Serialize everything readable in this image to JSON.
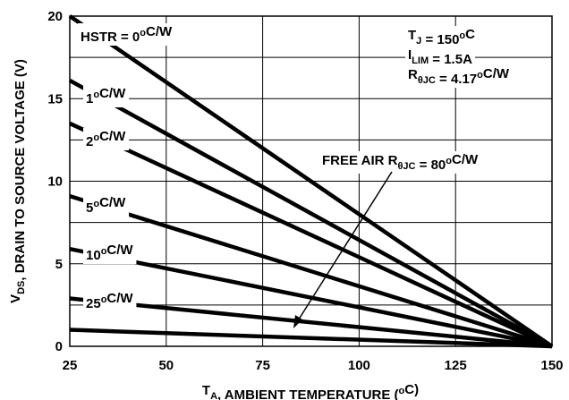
{
  "chart_data": {
    "type": "line",
    "x": [
      25,
      150
    ],
    "series": [
      {
        "name": [
          {
            "t": "HSTR = 0"
          },
          {
            "sup": "o"
          },
          {
            "t": "C/W"
          }
        ],
        "color": "#000000",
        "values": [
          20,
          0
        ]
      },
      {
        "name": [
          {
            "t": "1"
          },
          {
            "sup": "o"
          },
          {
            "t": "C/W"
          }
        ],
        "color": "#000000",
        "values": [
          16.1,
          0
        ]
      },
      {
        "name": [
          {
            "t": "2"
          },
          {
            "sup": "o"
          },
          {
            "t": "C/W"
          }
        ],
        "color": "#000000",
        "values": [
          13.5,
          0
        ]
      },
      {
        "name": [
          {
            "t": "5"
          },
          {
            "sup": "o"
          },
          {
            "t": "C/W"
          }
        ],
        "color": "#000000",
        "values": [
          9.1,
          0
        ]
      },
      {
        "name": [
          {
            "t": "10"
          },
          {
            "sup": "o"
          },
          {
            "t": "C/W"
          }
        ],
        "color": "#000000",
        "values": [
          5.9,
          0
        ]
      },
      {
        "name": [
          {
            "t": "25"
          },
          {
            "sup": "o"
          },
          {
            "t": "C/W"
          }
        ],
        "color": "#000000",
        "values": [
          2.9,
          0
        ]
      },
      {
        "name": [
          {
            "t": "FREE AIR R"
          },
          {
            "sub": "θJC"
          },
          {
            "t": " = 80"
          },
          {
            "sup": "o"
          },
          {
            "t": "C/W"
          }
        ],
        "color": "#000000",
        "values": [
          1.0,
          0
        ]
      }
    ],
    "conditions": [
      [
        {
          "t": "T"
        },
        {
          "sub": "J"
        },
        {
          "t": " = 150"
        },
        {
          "sup": "o"
        },
        {
          "t": "C"
        }
      ],
      [
        {
          "t": "I"
        },
        {
          "sub": "LIM"
        },
        {
          "t": " = 1.5A"
        }
      ],
      [
        {
          "t": "R"
        },
        {
          "sub": "θJC"
        },
        {
          "t": " = 4.17"
        },
        {
          "sup": "o"
        },
        {
          "t": "C/W"
        }
      ]
    ],
    "xlabel": [
      {
        "t": "T"
      },
      {
        "sub": "A"
      },
      {
        "t": ", AMBIENT TEMPERATURE ("
      },
      {
        "sup": "o"
      },
      {
        "t": "C)"
      }
    ],
    "ylabel": [
      {
        "t": "V"
      },
      {
        "sub": "DS"
      },
      {
        "t": ", DRAIN TO SOURCE VOLTAGE (V)"
      }
    ],
    "xlim": [
      25,
      150
    ],
    "xticks": [
      25,
      50,
      75,
      100,
      125,
      150
    ],
    "ylim": [
      0,
      20
    ],
    "yticks": [
      0,
      5,
      10,
      15,
      20
    ],
    "y_minor_grid": [
      2.5,
      7.5,
      12.5,
      17.5
    ],
    "grid": true
  }
}
